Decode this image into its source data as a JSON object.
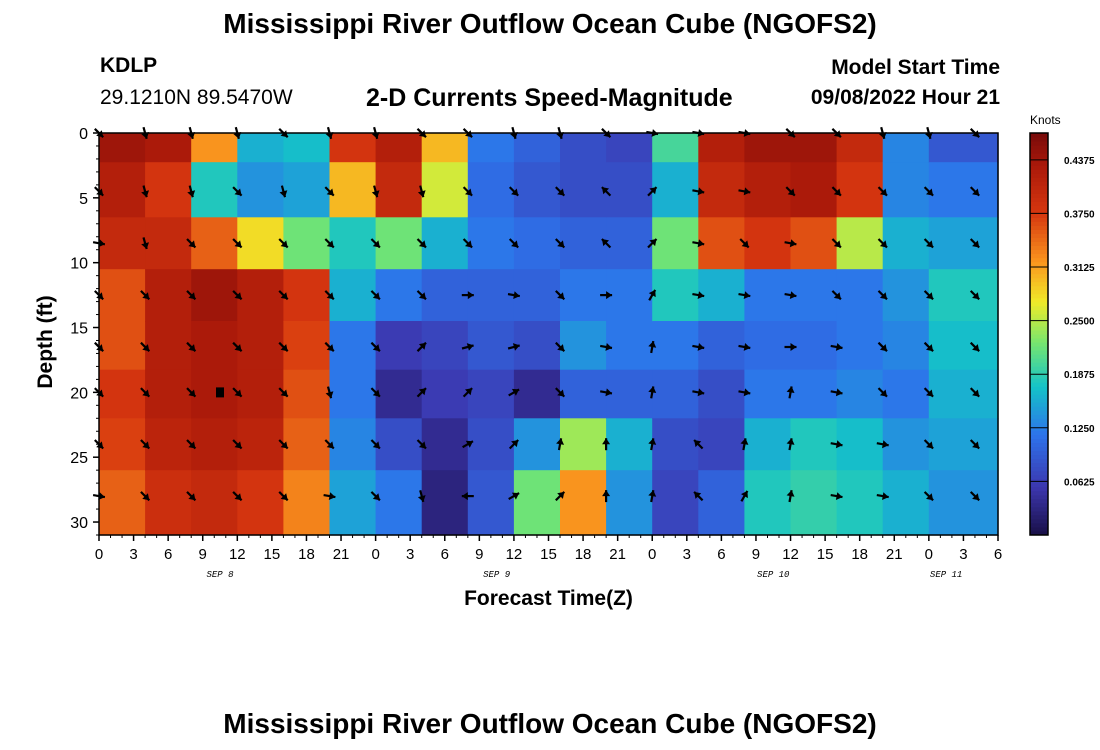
{
  "page": {
    "title": "Mississippi River Outflow Ocean Cube (NGOFS2)",
    "title_repeat": "Mississippi River Outflow Ocean Cube (NGOFS2)",
    "station_id": "KDLP",
    "station_coords": "29.1210N  89.5470W",
    "subtitle": "2-D Currents Speed-Magnitude",
    "model_start_label": "Model Start Time",
    "model_start_value": "09/08/2022 Hour 21"
  },
  "chart_data": {
    "type": "heatmap",
    "title": "2-D Currents Speed-Magnitude",
    "xlabel": "Forecast Time(Z)",
    "ylabel": "Depth (ft)",
    "xlim_hours": [
      0,
      78
    ],
    "ylim": [
      0,
      31
    ],
    "x_ticks": [
      "0",
      "3",
      "6",
      "9",
      "12",
      "15",
      "18",
      "21",
      "0",
      "3",
      "6",
      "9",
      "12",
      "15",
      "18",
      "21",
      "0",
      "3",
      "6",
      "9",
      "12",
      "15",
      "18",
      "21",
      "0",
      "3",
      "6"
    ],
    "y_ticks": [
      0,
      5,
      10,
      15,
      20,
      25,
      30
    ],
    "date_labels": [
      {
        "text": "SEP 8",
        "hour": 10.5
      },
      {
        "text": "SEP 9",
        "hour": 34.5
      },
      {
        "text": "SEP 10",
        "hour": 58.5
      },
      {
        "text": "SEP 11",
        "hour": 73.5
      }
    ],
    "colorbar": {
      "label": "Knots",
      "min": 0,
      "max": 0.4688,
      "ticks": [
        "0.4375",
        "0.3750",
        "0.3125",
        "0.2500",
        "0.1875",
        "0.1250",
        "0.0625"
      ],
      "tick_values": [
        0.4375,
        0.375,
        0.3125,
        0.25,
        0.1875,
        0.125,
        0.0625
      ]
    },
    "depth_levels": [
      0,
      4.5,
      8.5,
      12.5,
      16.5,
      20,
      24,
      28
    ],
    "time_cells": [
      {
        "start": 0,
        "end": 4,
        "speeds": [
          0.44,
          0.42,
          0.4,
          0.36,
          0.36,
          0.38,
          0.37,
          0.35
        ]
      },
      {
        "start": 4,
        "end": 8,
        "speeds": [
          0.43,
          0.38,
          0.4,
          0.42,
          0.42,
          0.42,
          0.41,
          0.39
        ]
      },
      {
        "start": 8,
        "end": 12,
        "speeds": [
          0.32,
          0.18,
          0.35,
          0.44,
          0.43,
          0.43,
          0.42,
          0.4
        ]
      },
      {
        "start": 12,
        "end": 16,
        "speeds": [
          0.16,
          0.14,
          0.28,
          0.42,
          0.42,
          0.42,
          0.41,
          0.38
        ]
      },
      {
        "start": 16,
        "end": 20,
        "speeds": [
          0.17,
          0.15,
          0.22,
          0.38,
          0.37,
          0.36,
          0.35,
          0.33
        ]
      },
      {
        "start": 20,
        "end": 24,
        "speeds": [
          0.38,
          0.3,
          0.18,
          0.16,
          0.12,
          0.12,
          0.13,
          0.15
        ]
      },
      {
        "start": 24,
        "end": 28,
        "speeds": [
          0.42,
          0.4,
          0.22,
          0.12,
          0.06,
          0.04,
          0.08,
          0.12
        ]
      },
      {
        "start": 28,
        "end": 32,
        "speeds": [
          0.3,
          0.26,
          0.16,
          0.1,
          0.07,
          0.06,
          0.04,
          0.03
        ]
      },
      {
        "start": 32,
        "end": 36,
        "speeds": [
          0.12,
          0.11,
          0.12,
          0.1,
          0.09,
          0.07,
          0.08,
          0.09
        ]
      },
      {
        "start": 36,
        "end": 40,
        "speeds": [
          0.1,
          0.09,
          0.11,
          0.1,
          0.08,
          0.04,
          0.14,
          0.22
        ]
      },
      {
        "start": 40,
        "end": 44,
        "speeds": [
          0.08,
          0.08,
          0.1,
          0.12,
          0.14,
          0.1,
          0.24,
          0.32
        ]
      },
      {
        "start": 44,
        "end": 48,
        "speeds": [
          0.07,
          0.08,
          0.1,
          0.12,
          0.12,
          0.1,
          0.16,
          0.14
        ]
      },
      {
        "start": 48,
        "end": 52,
        "speeds": [
          0.2,
          0.16,
          0.22,
          0.18,
          0.12,
          0.1,
          0.08,
          0.07
        ]
      },
      {
        "start": 52,
        "end": 56,
        "speeds": [
          0.42,
          0.4,
          0.36,
          0.16,
          0.1,
          0.08,
          0.07,
          0.1
        ]
      },
      {
        "start": 56,
        "end": 60,
        "speeds": [
          0.44,
          0.42,
          0.38,
          0.12,
          0.11,
          0.12,
          0.16,
          0.18
        ]
      },
      {
        "start": 60,
        "end": 64,
        "speeds": [
          0.44,
          0.43,
          0.36,
          0.12,
          0.11,
          0.12,
          0.18,
          0.19
        ]
      },
      {
        "start": 64,
        "end": 68,
        "speeds": [
          0.4,
          0.38,
          0.25,
          0.12,
          0.12,
          0.13,
          0.17,
          0.18
        ]
      },
      {
        "start": 68,
        "end": 72,
        "speeds": [
          0.13,
          0.13,
          0.16,
          0.14,
          0.13,
          0.12,
          0.14,
          0.16
        ]
      },
      {
        "start": 72,
        "end": 78,
        "speeds": [
          0.09,
          0.12,
          0.15,
          0.18,
          0.17,
          0.16,
          0.15,
          0.14
        ]
      }
    ],
    "arrow_depths": [
      0,
      4.5,
      8.5,
      12.5,
      16.5,
      20,
      24,
      28
    ],
    "arrow_columns": [
      {
        "hour": 0,
        "directions": [
          135,
          135,
          100,
          135,
          135,
          135,
          135,
          100
        ]
      },
      {
        "hour": 4,
        "directions": [
          165,
          165,
          165,
          135,
          135,
          135,
          135,
          135
        ]
      },
      {
        "hour": 8,
        "directions": [
          165,
          165,
          135,
          135,
          135,
          135,
          135,
          135
        ]
      },
      {
        "hour": 12,
        "directions": [
          165,
          135,
          135,
          135,
          135,
          135,
          135,
          135
        ]
      },
      {
        "hour": 16,
        "directions": [
          135,
          165,
          135,
          135,
          135,
          135,
          135,
          135
        ]
      },
      {
        "hour": 20,
        "directions": [
          165,
          135,
          135,
          135,
          135,
          165,
          135,
          100
        ]
      },
      {
        "hour": 24,
        "directions": [
          165,
          165,
          135,
          135,
          135,
          135,
          135,
          135
        ]
      },
      {
        "hour": 28,
        "directions": [
          135,
          165,
          135,
          135,
          45,
          45,
          135,
          165
        ]
      },
      {
        "hour": 32,
        "directions": [
          135,
          135,
          135,
          90,
          75,
          45,
          60,
          270
        ]
      },
      {
        "hour": 36,
        "directions": [
          165,
          135,
          135,
          100,
          75,
          60,
          45,
          60
        ]
      },
      {
        "hour": 40,
        "directions": [
          165,
          135,
          135,
          135,
          135,
          135,
          10,
          45
        ]
      },
      {
        "hour": 44,
        "directions": [
          135,
          315,
          315,
          90,
          100,
          100,
          0,
          0
        ]
      },
      {
        "hour": 48,
        "directions": [
          100,
          45,
          45,
          30,
          10,
          10,
          10,
          10
        ]
      },
      {
        "hour": 52,
        "directions": [
          100,
          100,
          100,
          100,
          100,
          100,
          315,
          315
        ]
      },
      {
        "hour": 56,
        "directions": [
          100,
          100,
          135,
          100,
          100,
          100,
          10,
          30
        ]
      },
      {
        "hour": 60,
        "directions": [
          135,
          135,
          100,
          100,
          90,
          10,
          10,
          10
        ]
      },
      {
        "hour": 64,
        "directions": [
          135,
          135,
          135,
          135,
          100,
          100,
          100,
          100
        ]
      },
      {
        "hour": 68,
        "directions": [
          165,
          135,
          135,
          135,
          135,
          135,
          100,
          100
        ]
      },
      {
        "hour": 72,
        "directions": [
          165,
          135,
          135,
          135,
          135,
          135,
          135,
          135
        ]
      },
      {
        "hour": 76,
        "directions": [
          135,
          135,
          135,
          135,
          135,
          135,
          135,
          135
        ]
      }
    ],
    "marker": {
      "hour": 10.5,
      "depth": 20
    }
  }
}
